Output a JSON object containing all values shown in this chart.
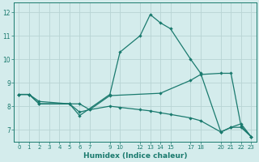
{
  "xlabel": "Humidex (Indice chaleur)",
  "bg_color": "#d4ecec",
  "grid_color": "#c0d8d8",
  "line_color": "#1a7a6e",
  "xlim": [
    -0.5,
    23.5
  ],
  "ylim": [
    6.5,
    12.4
  ],
  "xtick_positions": [
    0,
    1,
    2,
    3,
    4,
    5,
    6,
    7,
    9,
    10,
    12,
    13,
    14,
    15,
    17,
    18,
    20,
    21,
    22,
    23
  ],
  "xtick_labels": [
    "0",
    "1",
    "2",
    "3",
    "4",
    "5",
    "6",
    "7",
    "9",
    "10",
    "12",
    "13",
    "14",
    "15",
    "17",
    "18",
    "20",
    "21",
    "22",
    "23"
  ],
  "ytick_positions": [
    7,
    8,
    9,
    10,
    11,
    12
  ],
  "ytick_labels": [
    "7",
    "8",
    "9",
    "10",
    "11",
    "12"
  ],
  "series": [
    {
      "x": [
        0,
        1,
        2,
        5,
        6,
        9,
        10,
        12,
        13,
        14,
        15,
        17,
        18,
        20,
        21,
        22,
        23
      ],
      "y": [
        8.5,
        8.5,
        8.2,
        8.1,
        7.6,
        8.5,
        10.3,
        11.0,
        11.9,
        11.55,
        11.3,
        10.0,
        9.4,
        6.9,
        7.1,
        7.25,
        6.7
      ]
    },
    {
      "x": [
        0,
        1,
        2,
        5,
        6,
        7,
        9,
        14,
        17,
        18,
        20,
        21,
        22,
        23
      ],
      "y": [
        8.5,
        8.5,
        8.1,
        8.1,
        8.1,
        7.85,
        8.45,
        8.55,
        9.1,
        9.35,
        9.4,
        9.4,
        7.15,
        6.7
      ]
    },
    {
      "x": [
        0,
        1,
        2,
        5,
        6,
        7,
        9,
        10,
        12,
        13,
        14,
        15,
        17,
        18,
        20,
        21,
        22,
        23
      ],
      "y": [
        8.5,
        8.5,
        8.1,
        8.1,
        7.75,
        7.85,
        8.0,
        7.95,
        7.85,
        7.8,
        7.72,
        7.65,
        7.5,
        7.38,
        6.9,
        7.1,
        7.1,
        6.7
      ]
    }
  ]
}
